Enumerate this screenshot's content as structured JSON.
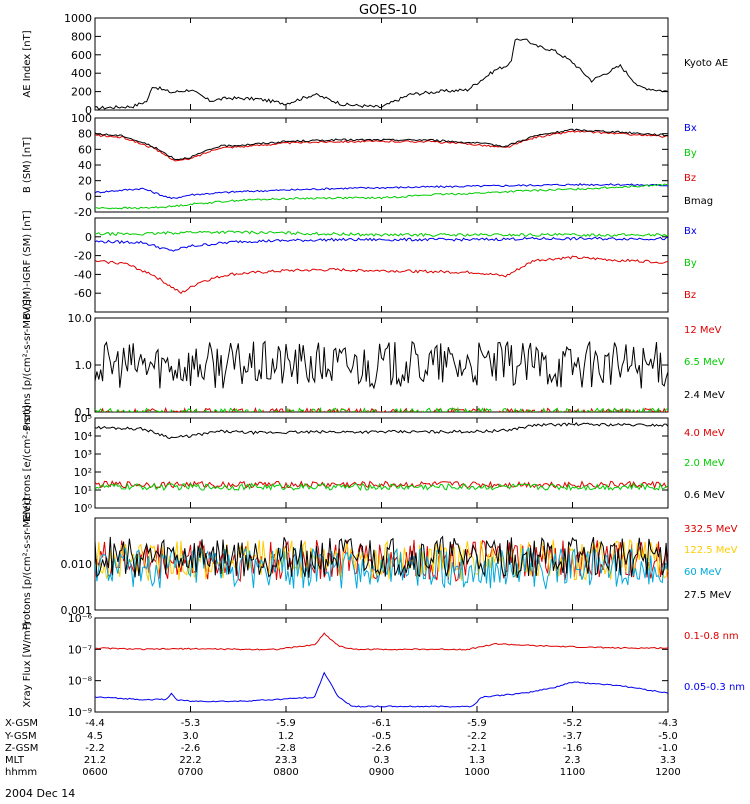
{
  "title": "GOES-10",
  "date_label": "2004 Dec 14",
  "colors": {
    "black": "#000000",
    "red": "#dd0000",
    "green": "#00cc00",
    "blue": "#0000ee",
    "yellow": "#ffcc00",
    "cyan": "#00aadd"
  },
  "chart_data": [
    {
      "type": "line",
      "name": "ae",
      "ylabel": "AE Index [nT]",
      "ylim": [
        0,
        1000
      ],
      "ticks": [
        0,
        200,
        400,
        600,
        800,
        1000
      ],
      "tick_labels": [
        "0",
        "200",
        "400",
        "600",
        "800",
        "1000"
      ],
      "series": [
        {
          "name": "Kyoto AE",
          "color": "#000000",
          "x": [
            6.0,
            6.4,
            6.55,
            6.6,
            6.8,
            7.0,
            7.2,
            7.4,
            7.7,
            8.0,
            8.3,
            8.6,
            9.0,
            9.3,
            9.6,
            9.9,
            10.2,
            10.35,
            10.4,
            10.5,
            10.6,
            10.8,
            11.0,
            11.2,
            11.5,
            11.7,
            12.0
          ],
          "y": [
            20,
            40,
            100,
            260,
            190,
            220,
            100,
            130,
            120,
            70,
            170,
            60,
            30,
            170,
            200,
            220,
            440,
            500,
            750,
            780,
            700,
            650,
            520,
            320,
            480,
            250,
            200
          ]
        }
      ]
    },
    {
      "type": "line",
      "name": "bsm",
      "ylabel": "B (SM) [nT]",
      "ylim": [
        -20,
        100
      ],
      "ticks": [
        -20,
        0,
        20,
        40,
        60,
        80,
        100
      ],
      "tick_labels": [
        "-20",
        "0",
        "20",
        "40",
        "60",
        "80",
        "100"
      ],
      "series": [
        {
          "name": "Bx",
          "color": "#0000ee",
          "x": [
            6.0,
            6.5,
            6.8,
            7.0,
            7.5,
            8.0,
            8.5,
            9.0,
            9.5,
            10.0,
            10.5,
            11.0,
            11.5,
            12.0
          ],
          "y": [
            5,
            10,
            -3,
            2,
            6,
            8,
            10,
            11,
            12,
            13,
            14,
            15,
            15,
            14
          ]
        },
        {
          "name": "By",
          "color": "#00cc00",
          "x": [
            6.0,
            6.5,
            6.8,
            7.0,
            7.5,
            8.0,
            8.5,
            9.0,
            9.5,
            10.0,
            10.5,
            11.0,
            11.5,
            12.0
          ],
          "y": [
            -15,
            -15,
            -13,
            -10,
            -5,
            -3,
            -2,
            -2,
            2,
            4,
            7,
            9,
            12,
            15
          ]
        },
        {
          "name": "Bz",
          "color": "#dd0000",
          "x": [
            6.0,
            6.3,
            6.6,
            6.85,
            7.0,
            7.3,
            7.6,
            8.0,
            8.5,
            9.0,
            9.5,
            10.0,
            10.3,
            10.6,
            11.0,
            11.5,
            12.0
          ],
          "y": [
            78,
            75,
            62,
            45,
            48,
            62,
            64,
            68,
            70,
            70,
            70,
            66,
            62,
            75,
            83,
            80,
            76
          ]
        },
        {
          "name": "Bmag",
          "color": "#000000",
          "x": [
            6.0,
            6.3,
            6.6,
            6.85,
            7.0,
            7.3,
            7.6,
            8.0,
            8.5,
            9.0,
            9.5,
            10.0,
            10.3,
            10.6,
            11.0,
            11.5,
            12.0
          ],
          "y": [
            80,
            77,
            64,
            47,
            50,
            64,
            66,
            70,
            72,
            72,
            72,
            68,
            64,
            77,
            85,
            82,
            78
          ]
        }
      ]
    },
    {
      "type": "line",
      "name": "bdiff",
      "ylabel": "B (SM)-IGRF (SM) [nT]",
      "ylim": [
        -80,
        20
      ],
      "ticks": [
        -60,
        -40,
        -20,
        0
      ],
      "tick_labels": [
        "-60",
        "-40",
        "-20",
        "0"
      ],
      "series": [
        {
          "name": "Bx",
          "color": "#0000ee",
          "x": [
            6.0,
            6.5,
            6.8,
            7.0,
            7.5,
            8.0,
            8.5,
            9.0,
            9.5,
            10.0,
            10.5,
            11.0,
            11.5,
            12.0
          ],
          "y": [
            -5,
            -6,
            -15,
            -10,
            -5,
            -4,
            -3,
            -3,
            -3,
            -3,
            -2,
            -2,
            -2,
            -2
          ]
        },
        {
          "name": "By",
          "color": "#00cc00",
          "x": [
            6.0,
            6.5,
            7.0,
            7.5,
            8.0,
            8.5,
            9.0,
            9.5,
            10.0,
            10.5,
            11.0,
            11.5,
            12.0
          ],
          "y": [
            3,
            3,
            5,
            5,
            4,
            3,
            2,
            2,
            2,
            2,
            2,
            2,
            2
          ]
        },
        {
          "name": "Bz",
          "color": "#dd0000",
          "x": [
            6.0,
            6.3,
            6.6,
            6.9,
            7.1,
            7.4,
            7.7,
            8.0,
            8.5,
            9.0,
            9.5,
            10.0,
            10.3,
            10.6,
            11.0,
            11.5,
            12.0
          ],
          "y": [
            -26,
            -28,
            -40,
            -60,
            -48,
            -40,
            -38,
            -36,
            -35,
            -36,
            -37,
            -38,
            -42,
            -25,
            -22,
            -25,
            -27
          ]
        }
      ]
    },
    {
      "type": "line",
      "name": "protons_low",
      "ylabel": "Protons [p/(cm²-s-sr-MeV)]",
      "yscale": "log",
      "ylim": [
        0.1,
        10
      ],
      "ticks": [
        0.1,
        1,
        10
      ],
      "tick_labels": [
        "0.1",
        "1.0",
        "10.0"
      ],
      "series": [
        {
          "name": "12 MeV",
          "color": "#dd0000",
          "x": [
            6.0,
            12.0
          ],
          "y": [
            0.1,
            0.1
          ]
        },
        {
          "name": "6.5 MeV",
          "color": "#00cc00",
          "x": [
            6.0,
            12.0
          ],
          "y": [
            0.1,
            0.1
          ]
        },
        {
          "name": "2.4 MeV",
          "color": "#000000",
          "x": [
            6.0,
            12.0
          ],
          "y": [
            1.0,
            1.0
          ]
        }
      ]
    },
    {
      "type": "line",
      "name": "electrons",
      "ylabel": "Electrons [e/(cm²-s-sr)]",
      "yscale": "log",
      "ylim": [
        1,
        100000
      ],
      "ticks": [
        1,
        10,
        100,
        1000,
        10000,
        100000
      ],
      "tick_labels": [
        "10⁰",
        "10¹",
        "10²",
        "10³",
        "10⁴",
        "10⁵"
      ],
      "series": [
        {
          "name": "4.0 MeV",
          "color": "#dd0000",
          "x": [
            6.0,
            12.0
          ],
          "y": [
            20,
            20
          ]
        },
        {
          "name": "2.0 MeV",
          "color": "#00cc00",
          "x": [
            6.0,
            12.0
          ],
          "y": [
            15,
            15
          ]
        },
        {
          "name": "0.6 MeV",
          "color": "#000000",
          "x": [
            6.0,
            6.5,
            6.8,
            7.0,
            7.3,
            7.7,
            8.0,
            8.5,
            9.0,
            9.5,
            10.0,
            10.3,
            10.6,
            11.0,
            11.5,
            12.0
          ],
          "y": [
            30000,
            25000,
            8000,
            10000,
            18000,
            15000,
            16000,
            17000,
            17000,
            17000,
            18000,
            20000,
            40000,
            45000,
            42000,
            40000
          ]
        }
      ]
    },
    {
      "type": "line",
      "name": "protons_high",
      "ylabel": "Protons [p/(cm²-s-sr-MeV)]",
      "yscale": "log",
      "ylim": [
        0.001,
        0.1
      ],
      "ticks": [
        0.001,
        0.01
      ],
      "tick_labels": [
        "0.001",
        "0.010"
      ],
      "series": [
        {
          "name": "332.5 MeV",
          "color": "#dd0000",
          "x": [
            6.0,
            12.0
          ],
          "y": [
            0.012,
            0.012
          ]
        },
        {
          "name": "122.5 MeV",
          "color": "#ffcc00",
          "x": [
            6.0,
            12.0
          ],
          "y": [
            0.012,
            0.012
          ]
        },
        {
          "name": "60 MeV",
          "color": "#00aadd",
          "x": [
            6.0,
            12.0
          ],
          "y": [
            0.008,
            0.008
          ]
        },
        {
          "name": "27.5 MeV",
          "color": "#000000",
          "x": [
            6.0,
            12.0
          ],
          "y": [
            0.014,
            0.014
          ]
        }
      ]
    },
    {
      "type": "line",
      "name": "xray",
      "ylabel": "Xray Flux [W/m²]",
      "yscale": "log",
      "ylim": [
        1e-09,
        1e-06
      ],
      "ticks": [
        1e-09,
        1e-08,
        1e-07,
        1e-06
      ],
      "tick_labels": [
        "10⁻⁹",
        "10⁻⁸",
        "10⁻⁷",
        "10⁻⁶"
      ],
      "series": [
        {
          "name": "0.1-0.8 nm",
          "color": "#dd0000",
          "x": [
            6.0,
            6.5,
            7.0,
            7.5,
            7.9,
            8.3,
            8.4,
            8.55,
            8.7,
            9.0,
            9.5,
            9.9,
            10.2,
            10.6,
            11.0,
            11.5,
            12.0
          ],
          "y": [
            1.1e-07,
            1e-07,
            1.05e-07,
            1e-07,
            1e-07,
            1.4e-07,
            3.2e-07,
            1.3e-07,
            1e-07,
            1e-07,
            1e-07,
            1e-07,
            1.5e-07,
            1.3e-07,
            1.2e-07,
            1.1e-07,
            1.1e-07
          ]
        },
        {
          "name": "0.05-0.3 nm",
          "color": "#0000ee",
          "x": [
            6.0,
            6.5,
            6.75,
            6.8,
            6.85,
            7.0,
            7.5,
            7.9,
            8.3,
            8.4,
            8.55,
            8.7,
            9.0,
            9.5,
            9.95,
            10.05,
            10.5,
            10.8,
            11.0,
            11.5,
            12.0
          ],
          "y": [
            3e-09,
            2.5e-09,
            2.5e-09,
            4e-09,
            2.5e-09,
            2.2e-09,
            2.2e-09,
            2.5e-09,
            3e-09,
            1.8e-08,
            3e-09,
            1.5e-09,
            1.5e-09,
            1.5e-09,
            1.5e-09,
            3e-09,
            4e-09,
            6e-09,
            9e-09,
            7e-09,
            4e-09
          ]
        }
      ]
    }
  ],
  "x_axis": {
    "xlim": [
      6.0,
      12.0
    ],
    "tick_positions": [
      6.0,
      7.0,
      8.0,
      9.0,
      10.0,
      11.0,
      12.0
    ],
    "rows": [
      {
        "label": "X-GSM",
        "values": [
          "-4.4",
          "-5.3",
          "-5.9",
          "-6.1",
          "-5.9",
          "-5.2",
          "-4.3"
        ]
      },
      {
        "label": "Y-GSM",
        "values": [
          "4.5",
          "3.0",
          "1.2",
          "-0.5",
          "-2.2",
          "-3.7",
          "-5.0"
        ]
      },
      {
        "label": "Z-GSM",
        "values": [
          "-2.2",
          "-2.6",
          "-2.8",
          "-2.6",
          "-2.1",
          "-1.6",
          "-1.0"
        ]
      },
      {
        "label": "MLT",
        "values": [
          "21.2",
          "22.2",
          "23.3",
          "0.3",
          "1.3",
          "2.3",
          "3.3"
        ]
      },
      {
        "label": "hhmm",
        "values": [
          "0600",
          "0700",
          "0800",
          "0900",
          "1000",
          "1100",
          "1200"
        ]
      }
    ]
  }
}
